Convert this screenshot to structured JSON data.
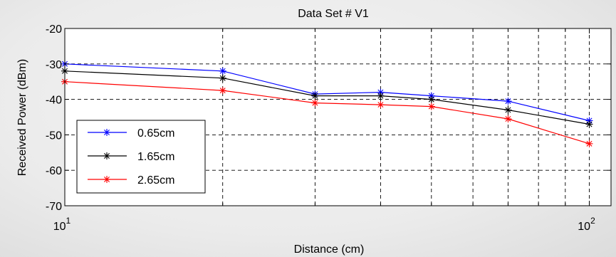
{
  "chart_data": {
    "type": "line",
    "title": "Data Set # V1",
    "xlabel": "Distance (cm)",
    "ylabel": "Received Power (dBm)",
    "xscale": "log",
    "xlim": [
      10,
      110
    ],
    "ylim": [
      -70,
      -20
    ],
    "x_ticks": [
      10,
      100
    ],
    "x_tick_labels": [
      {
        "base": "10",
        "exp": "1"
      },
      {
        "base": "10",
        "exp": "2"
      }
    ],
    "y_ticks": [
      -70,
      -60,
      -50,
      -40,
      -30,
      -20
    ],
    "y_tick_labels": [
      "-70",
      "-60",
      "-50",
      "-40",
      "-30",
      "-20"
    ],
    "grid": true,
    "legend_position": "lower-left",
    "x": [
      10,
      20,
      30,
      40,
      50,
      70,
      100
    ],
    "series": [
      {
        "name": "0.65cm",
        "color": "#0000ff",
        "marker": "asterisk",
        "values": [
          -30,
          -32,
          -38.5,
          -38,
          -39,
          -40.5,
          -46
        ]
      },
      {
        "name": "1.65cm",
        "color": "#000000",
        "marker": "asterisk",
        "values": [
          -32,
          -34,
          -39,
          -39,
          -40,
          -43,
          -47
        ]
      },
      {
        "name": "2.65cm",
        "color": "#ff0000",
        "marker": "asterisk",
        "values": [
          -35,
          -37.5,
          -41,
          -41.5,
          -42,
          -45.5,
          -52.5
        ]
      }
    ]
  }
}
